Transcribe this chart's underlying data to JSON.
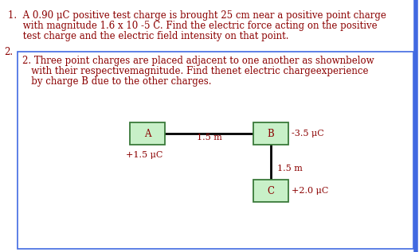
{
  "background_color": "#ffffff",
  "text_color": "#8B0000",
  "box_inner_color": "#ffffff",
  "outer_box_border": "#4169E1",
  "node_box_color": "#c8f0c8",
  "node_box_border": "#3a7a3a",
  "line_color": "#000000",
  "right_bar_color": "#4169E1",
  "line1_text": "1.  A 0.90 μC positive test charge is brought 25 cm near a positive point charge",
  "line2_text": "     with magnitude 1.6 x 10 -5 C. Find the electric force acting on the positive",
  "line3_text": "     test charge and the electric field intensity on that point.",
  "item2_label": "2.",
  "box_text_line1": "2. Three point charges are placed adjacent to one another as shownbelow",
  "box_text_line2": "   with their respectivemagnitude. Find thenet electric chargeexperience",
  "box_text_line3": "   by charge B due to the other charges.",
  "charge_A_label": "A",
  "charge_B_label": "B",
  "charge_C_label": "C",
  "charge_A_value": "+1.5 μC",
  "charge_B_value": "-3.5 μC",
  "charge_C_value": "+2.0 μC",
  "dist_AB": "1.5 m",
  "dist_BC": "1.5 m",
  "font_size_main": 8.5,
  "font_size_node": 8.5,
  "font_size_label": 8.0,
  "font_family": "DejaVu Serif"
}
